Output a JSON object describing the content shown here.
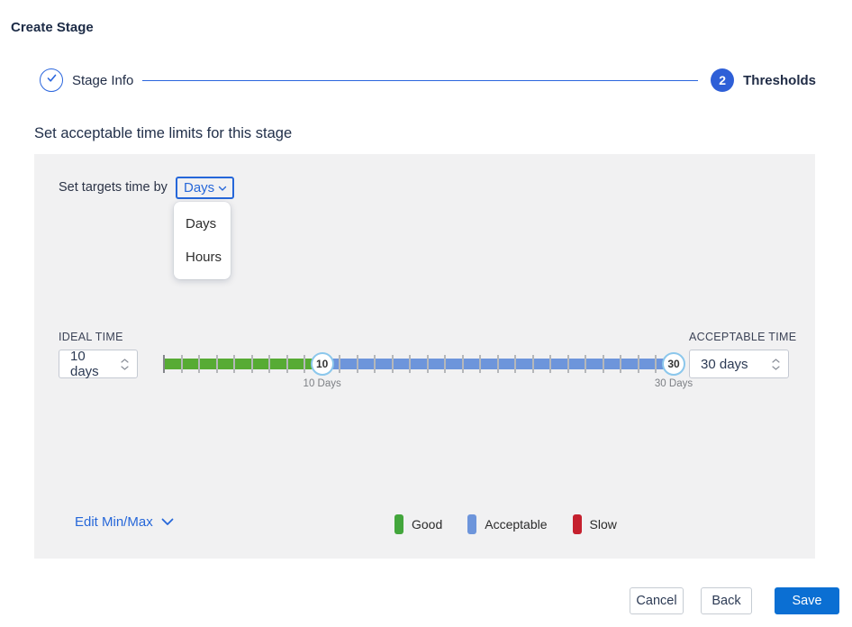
{
  "page": {
    "title": "Create Stage"
  },
  "stepper": {
    "steps": [
      {
        "label": "Stage Info",
        "state": "completed"
      },
      {
        "label": "Thresholds",
        "state": "active",
        "number": "2"
      }
    ]
  },
  "section": {
    "heading": "Set acceptable time limits for this stage"
  },
  "targets": {
    "label": "Set targets time by",
    "selected": "Days",
    "options": [
      "Days",
      "Hours"
    ]
  },
  "ideal": {
    "label": "IDEAL TIME",
    "value": "10 days"
  },
  "acceptable": {
    "label": "ACCEPTABLE TIME",
    "value": "30 days"
  },
  "slider": {
    "min": 1,
    "max": 30,
    "ideal_value": 10,
    "acceptable_value": 30,
    "ideal_handle": "10",
    "acceptable_handle": "30",
    "ideal_label": "10 Days",
    "acceptable_label": "30 Days",
    "colors": {
      "good": "#57ab34",
      "acceptable": "#6d95db",
      "tick": "#b5b7ba"
    }
  },
  "edit_minmax": {
    "label": "Edit Min/Max"
  },
  "legend": [
    {
      "label": "Good",
      "color": "#43a63c"
    },
    {
      "label": "Acceptable",
      "color": "#6d95db"
    },
    {
      "label": "Slow",
      "color": "#c5202e"
    }
  ],
  "footer": {
    "cancel": "Cancel",
    "back": "Back",
    "save": "Save"
  }
}
